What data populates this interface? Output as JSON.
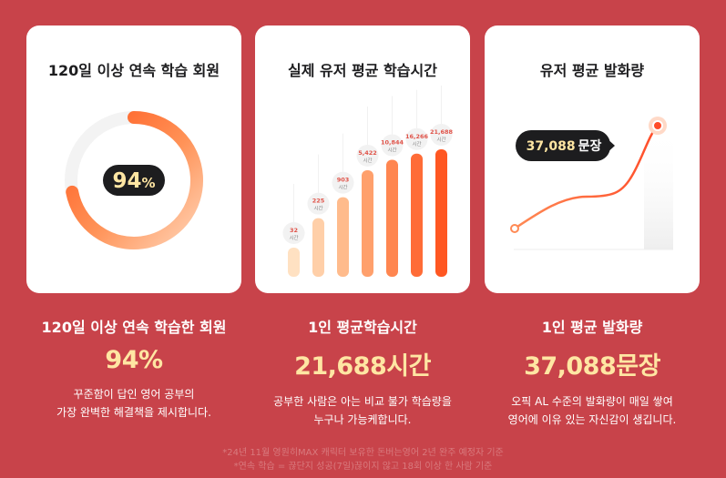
{
  "colors": {
    "background": "#c8434a",
    "accent_orange": "#ff6b2c",
    "value_yellow": "#ffe6a3",
    "pill_dark": "#1d1d1f"
  },
  "cards": [
    {
      "title": "120일 이상 연속 학습 회원",
      "percent_label": "94",
      "percent_suffix": "%",
      "percent_value": 94
    },
    {
      "title": "실제 유저 평균 학습시간"
    },
    {
      "title": "유저 평균 발화량",
      "callout_value": "37,088",
      "callout_unit": "문장"
    }
  ],
  "chart_data": {
    "type": "bar",
    "values": [
      32,
      225,
      903,
      5422,
      10844,
      16266,
      21688
    ],
    "value_labels": [
      "32",
      "225",
      "903",
      "5,422",
      "10,844",
      "16,266",
      "21,688"
    ],
    "unit_label": "시간"
  },
  "stats": [
    {
      "heading": "120일 이상 연속 학습한 회원",
      "value": "94%",
      "desc": "꾸준함이 답인 영어 공부의\n가장 완벽한 해결책을 제시합니다."
    },
    {
      "heading": "1인 평균학습시간",
      "value": "21,688시간",
      "desc": "공부한 사람은 아는 비교 불가 학습량을\n누구나 가능케합니다."
    },
    {
      "heading": "1인 평균 발화량",
      "value": "37,088문장",
      "desc": "오픽 AL 수준의 발화량이 매일 쌓여\n영어에 이유 있는 자신감이 생깁니다."
    }
  ],
  "footnotes": [
    "*24년 11월 영원히MAX 캐릭터 보유한 돈버는영어 2년 완주 예정자 기준",
    "*연속 학습 = 끊단지 성공(7일)끊이지 않고 18회 이상 한 사람 기준"
  ]
}
